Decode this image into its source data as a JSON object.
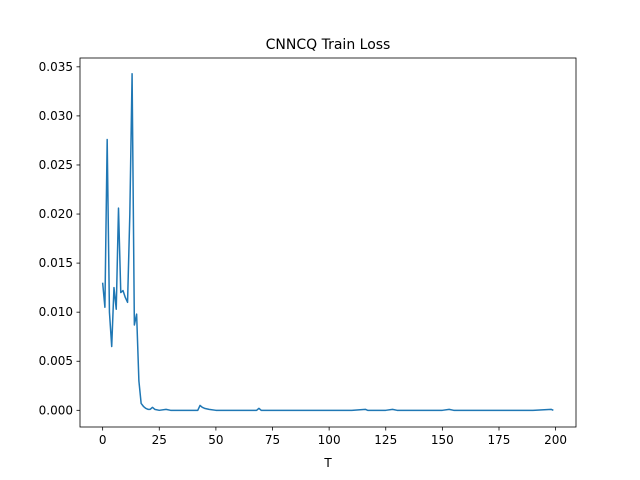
{
  "chart_data": {
    "type": "line",
    "title": "CNNCQ Train Loss",
    "xlabel": "T",
    "ylabel": "",
    "xlim": [
      -10,
      209
    ],
    "ylim": [
      -0.0017,
      0.0359
    ],
    "xticks": [
      0,
      25,
      50,
      75,
      100,
      125,
      150,
      175,
      200
    ],
    "yticks": [
      0.0,
      0.005,
      0.01,
      0.015,
      0.02,
      0.025,
      0.03,
      0.035
    ],
    "ytick_labels": [
      "0.000",
      "0.005",
      "0.010",
      "0.015",
      "0.020",
      "0.025",
      "0.030",
      "0.035"
    ],
    "xtick_labels": [
      "0",
      "25",
      "50",
      "75",
      "100",
      "125",
      "150",
      "175",
      "200"
    ],
    "grid": false,
    "legend": "none",
    "series": [
      {
        "color": "#1f77b4",
        "points": [
          [
            0,
            0.013
          ],
          [
            1,
            0.0105
          ],
          [
            2,
            0.0276
          ],
          [
            3,
            0.01
          ],
          [
            4,
            0.0065
          ],
          [
            5,
            0.0125
          ],
          [
            6,
            0.0103
          ],
          [
            7,
            0.0206
          ],
          [
            8,
            0.012
          ],
          [
            9,
            0.0122
          ],
          [
            10,
            0.0115
          ],
          [
            11,
            0.011
          ],
          [
            12,
            0.02
          ],
          [
            13,
            0.0343
          ],
          [
            14,
            0.0087
          ],
          [
            15,
            0.0098
          ],
          [
            16,
            0.003
          ],
          [
            17,
            0.0007
          ],
          [
            18,
            0.0004
          ],
          [
            19,
            0.0002
          ],
          [
            20,
            0.0001
          ],
          [
            21,
            0.0001
          ],
          [
            22,
            0.0003
          ],
          [
            23,
            0.0001
          ],
          [
            25,
            0.0
          ],
          [
            28,
            0.0001
          ],
          [
            30,
            0.0
          ],
          [
            35,
            0.0
          ],
          [
            40,
            0.0
          ],
          [
            42,
            0.0
          ],
          [
            43,
            0.0005
          ],
          [
            44,
            0.0003
          ],
          [
            45,
            0.0002
          ],
          [
            47,
            0.0001
          ],
          [
            50,
            0.0
          ],
          [
            55,
            0.0
          ],
          [
            60,
            0.0
          ],
          [
            65,
            0.0
          ],
          [
            68,
            0.0
          ],
          [
            69,
            0.0002
          ],
          [
            70,
            0.0
          ],
          [
            75,
            0.0
          ],
          [
            80,
            0.0
          ],
          [
            90,
            0.0
          ],
          [
            100,
            0.0
          ],
          [
            110,
            0.0
          ],
          [
            116,
            0.0001
          ],
          [
            117,
            0.0
          ],
          [
            125,
            0.0
          ],
          [
            128,
            0.0001
          ],
          [
            130,
            0.0
          ],
          [
            140,
            0.0
          ],
          [
            150,
            0.0
          ],
          [
            153,
            0.0001
          ],
          [
            155,
            0.0
          ],
          [
            160,
            0.0
          ],
          [
            170,
            0.0
          ],
          [
            180,
            0.0
          ],
          [
            190,
            0.0
          ],
          [
            198,
            0.0001
          ],
          [
            199,
            0.0
          ]
        ]
      }
    ]
  }
}
